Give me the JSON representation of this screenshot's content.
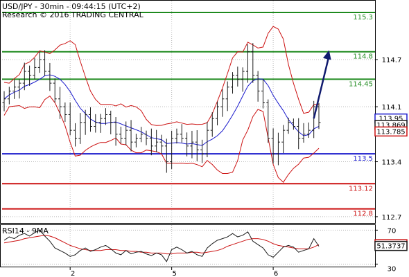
{
  "header": {
    "line1": "USD/JPY - 30min - 09:44:15 (UTC+2)",
    "line2": "Research © 2016 TRADING CENTRAL"
  },
  "colors": {
    "green": "#1e8a1e",
    "red": "#cc1111",
    "blue": "#1a1acc",
    "navy": "#101a6e",
    "candle": "#1a1a1a",
    "grid": "#bbbbbb"
  },
  "chart_data": [
    {
      "type": "candlestick",
      "title": "USD/JPY - 30min - 09:44:15 (UTC+2)",
      "ylim": [
        112.62,
        115.45
      ],
      "yticks": [
        {
          "value": 114.7,
          "label": "114.7"
        },
        {
          "value": 114.1,
          "label": "114.1"
        },
        {
          "value": 113.4,
          "label": "113.4"
        },
        {
          "value": 112.7,
          "label": "112.7"
        }
      ],
      "xticks": [
        {
          "i": 13,
          "label": "2"
        },
        {
          "i": 33,
          "label": "5"
        },
        {
          "i": 53,
          "label": "6"
        }
      ],
      "levels": [
        {
          "value": 115.3,
          "label": "115.3",
          "color": "#1e8a1e"
        },
        {
          "value": 114.8,
          "label": "114.8",
          "color": "#1e8a1e"
        },
        {
          "value": 114.45,
          "label": "114.45",
          "color": "#1e8a1e"
        },
        {
          "value": 113.5,
          "label": "113.5",
          "color": "#1a1acc"
        },
        {
          "value": 113.12,
          "label": "113.12",
          "color": "#cc1111"
        },
        {
          "value": 112.8,
          "label": "112.8",
          "color": "#cc1111"
        }
      ],
      "badges": [
        {
          "value": 113.95,
          "label": "113.95",
          "color": "#1a1acc"
        },
        {
          "value": 113.869,
          "label": "113.869",
          "color": "#1a1a1a"
        },
        {
          "value": 113.785,
          "label": "113.785",
          "color": "#cc1111"
        }
      ],
      "forecast": {
        "from": {
          "i": 61,
          "value": 113.95
        },
        "to": {
          "i": 64,
          "value": 114.82
        }
      },
      "close": [
        114.2,
        114.3,
        114.35,
        114.4,
        114.55,
        114.5,
        114.6,
        114.7,
        114.55,
        114.4,
        114.2,
        114.1,
        114.0,
        113.8,
        113.7,
        113.9,
        114.0,
        113.85,
        113.9,
        113.95,
        114.0,
        113.9,
        113.75,
        113.7,
        113.8,
        113.65,
        113.7,
        113.75,
        113.7,
        113.6,
        113.65,
        113.6,
        113.4,
        113.7,
        113.75,
        113.7,
        113.6,
        113.65,
        113.55,
        113.5,
        113.8,
        113.95,
        114.1,
        114.2,
        114.35,
        114.5,
        114.45,
        114.55,
        114.8,
        114.5,
        114.3,
        114.15,
        113.7,
        113.5,
        113.65,
        113.8,
        113.9,
        113.85,
        113.7,
        113.75,
        113.8,
        114.1,
        113.9
      ]
    },
    {
      "type": "line",
      "title": "RSI14 - 9MA",
      "ylim": [
        27,
        76
      ],
      "yticks": [
        {
          "value": 70,
          "label": "70"
        },
        {
          "value": 30,
          "label": "30"
        }
      ],
      "badges": [
        {
          "value": 53.4211,
          "label": "53.4211",
          "color": "#cc1111"
        },
        {
          "value": 51.3737,
          "label": "51.3737",
          "color": "#1a1a1a"
        }
      ],
      "rsi": [
        58,
        62,
        60,
        64,
        66,
        63,
        67,
        70,
        63,
        57,
        49,
        46,
        43,
        39,
        41,
        46,
        49,
        45,
        47,
        50,
        52,
        48,
        43,
        41,
        46,
        42,
        44,
        45,
        42,
        40,
        43,
        41,
        33,
        47,
        50,
        47,
        43,
        45,
        41,
        39,
        49,
        54,
        58,
        60,
        62,
        66,
        62,
        64,
        68,
        57,
        53,
        49,
        41,
        38,
        44,
        50,
        52,
        50,
        44,
        46,
        48,
        60,
        51
      ],
      "ma": [
        55,
        56,
        57,
        58,
        60,
        61,
        62,
        63,
        64,
        63,
        61,
        58,
        55,
        52,
        50,
        48,
        47,
        46,
        46,
        46,
        47,
        47,
        47,
        46,
        46,
        45,
        45,
        44,
        44,
        43,
        43,
        43,
        42,
        42,
        43,
        43,
        43,
        44,
        44,
        43,
        44,
        45,
        46,
        48,
        51,
        53,
        55,
        57,
        59,
        60,
        60,
        59,
        57,
        54,
        52,
        51,
        50,
        49,
        48,
        48,
        48,
        50,
        53
      ]
    }
  ]
}
